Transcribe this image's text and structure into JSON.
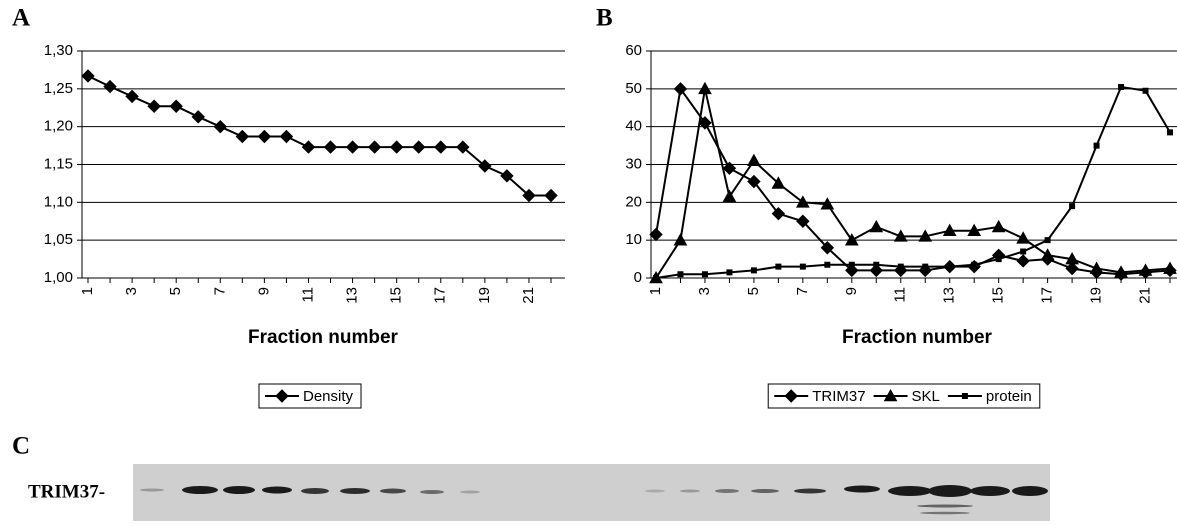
{
  "chart_data": [
    {
      "type": "line",
      "panel": "A",
      "x_label": "Fraction number",
      "categories": [
        "1",
        null,
        "3",
        null,
        "5",
        null,
        "7",
        null,
        "9",
        null,
        "11",
        null,
        "13",
        null,
        "15",
        null,
        "17",
        null,
        "19",
        null,
        "21",
        null
      ],
      "series": [
        {
          "name": "Density",
          "color": "#000000",
          "marker": "diamond",
          "values": [
            1.267,
            1.253,
            1.24,
            1.227,
            1.227,
            1.213,
            1.2,
            1.187,
            1.187,
            1.187,
            1.173,
            1.173,
            1.173,
            1.173,
            1.173,
            1.173,
            1.173,
            1.173,
            1.148,
            1.135,
            1.109,
            1.109
          ]
        }
      ],
      "ylim": [
        1.0,
        1.3
      ],
      "yticks": [
        {
          "value": 1.0,
          "label": "1,00"
        },
        {
          "value": 1.05,
          "label": "1,05"
        },
        {
          "value": 1.1,
          "label": "1,10"
        },
        {
          "value": 1.15,
          "label": "1,15"
        },
        {
          "value": 1.2,
          "label": "1,20"
        },
        {
          "value": 1.25,
          "label": "1,25"
        },
        {
          "value": 1.3,
          "label": "1,30"
        }
      ],
      "grid": true,
      "legend": "bottom"
    },
    {
      "type": "line",
      "panel": "B",
      "x_label": "Fraction number",
      "categories": [
        "1",
        null,
        "3",
        null,
        "5",
        null,
        "7",
        null,
        "9",
        null,
        "11",
        null,
        "13",
        null,
        "15",
        null,
        "17",
        null,
        "19",
        null,
        "21",
        null
      ],
      "series": [
        {
          "name": "TRIM37",
          "color": "#000000",
          "marker": "diamond",
          "values": [
            11.5,
            50,
            41,
            29,
            25.5,
            17,
            15,
            8,
            2,
            2,
            2,
            2,
            3,
            3,
            6,
            4.5,
            5,
            2.5,
            1.5,
            1,
            1.5,
            2
          ]
        },
        {
          "name": "SKL",
          "color": "#000000",
          "marker": "triangle",
          "values": [
            0,
            10,
            50,
            21.5,
            31,
            25,
            20,
            19.5,
            10,
            13.5,
            11,
            11,
            12.5,
            12.5,
            13.5,
            10.5,
            6,
            5,
            2.5,
            1.5,
            2,
            2.5
          ]
        },
        {
          "name": "protein",
          "color": "#000000",
          "marker": "square",
          "values": [
            0,
            1,
            1,
            1.5,
            2,
            3,
            3,
            3.5,
            3.5,
            3.5,
            3,
            3,
            3,
            3.5,
            5,
            7,
            10,
            19,
            35,
            50.5,
            49.5,
            38.5
          ]
        }
      ],
      "ylim": [
        0,
        60
      ],
      "yticks": [
        0,
        10,
        20,
        30,
        40,
        50,
        60
      ],
      "grid": true,
      "legend": "bottom"
    }
  ],
  "blot": {
    "panel": "C",
    "label": "TRIM37-"
  }
}
